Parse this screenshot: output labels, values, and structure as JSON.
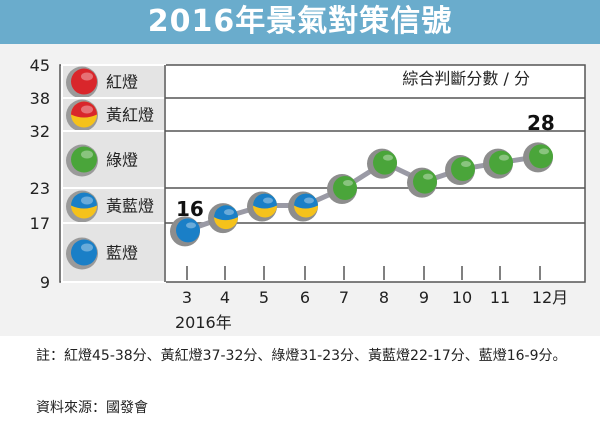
{
  "title": "2016年景氣對策信號",
  "chart_data": {
    "type": "line",
    "title": "2016年景氣對策信號",
    "ylabel": "綜合判斷分數 / 分",
    "xlabel": "2016年",
    "y_ticks": [
      45,
      38,
      32,
      23,
      17,
      9
    ],
    "ylim": [
      9,
      45
    ],
    "categories": [
      "3",
      "4",
      "5",
      "6",
      "7",
      "8",
      "9",
      "10",
      "11",
      "12月"
    ],
    "values": [
      16,
      18,
      20,
      20,
      23,
      27,
      24,
      26,
      27,
      28
    ],
    "data_labels": {
      "first": "16",
      "last": "28"
    },
    "bands": [
      {
        "label": "紅燈",
        "range": [
          38,
          45
        ],
        "colors": [
          "#d9262b"
        ]
      },
      {
        "label": "黃紅燈",
        "range": [
          32,
          38
        ],
        "colors": [
          "#d9262b",
          "#f5c21b"
        ]
      },
      {
        "label": "綠燈",
        "range": [
          23,
          32
        ],
        "colors": [
          "#4aa53a"
        ]
      },
      {
        "label": "黃藍燈",
        "range": [
          17,
          23
        ],
        "colors": [
          "#1a7fc7",
          "#f5c21b"
        ]
      },
      {
        "label": "藍燈",
        "range": [
          9,
          17
        ],
        "colors": [
          "#1a7fc7"
        ]
      }
    ]
  },
  "note": "註：紅燈45-38分、黃紅燈37-32分、綠燈31-23分、黃藍燈22-17分、藍燈16-9分。",
  "source": "資料來源：國發會"
}
